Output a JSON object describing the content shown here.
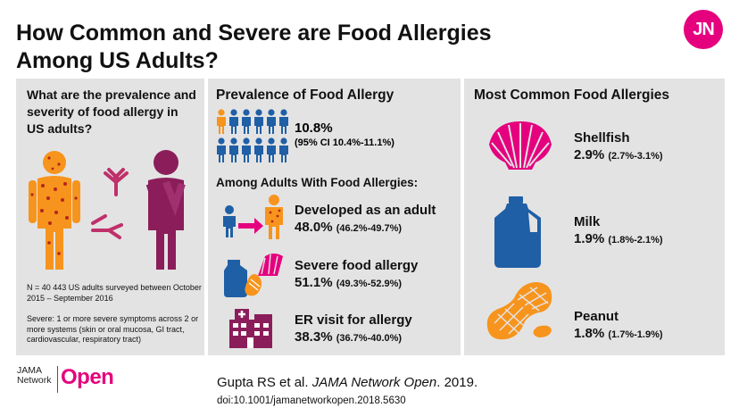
{
  "header": {
    "title_line1": "How Common and Severe are Food Allergies",
    "title_line2": "Among US Adults?",
    "logo_text": "JN"
  },
  "left": {
    "question": "What are the prevalence and severity of food allergy in US adults?",
    "note_sample": "N = 40 443 US adults surveyed between October 2015 – September 2016",
    "note_severe": "Severe: 1 or more severe symptoms across 2 or more systems (skin or oral mucosa, GI tract, cardiovascular, respiratory tract)"
  },
  "middle": {
    "prevalence_heading": "Prevalence of Food Allergy",
    "prevalence_value": "10.8%",
    "prevalence_ci": "(95% CI 10.4%-11.1%)",
    "subheading": "Among Adults With Food Allergies:",
    "stats": [
      {
        "label": "Developed as an adult",
        "value": "48.0%",
        "ci": "(46.2%-49.7%)"
      },
      {
        "label": "Severe food allergy",
        "value": "51.1%",
        "ci": "(49.3%-52.9%)"
      },
      {
        "label": "ER visit for allergy",
        "value": "38.3%",
        "ci": "(36.7%-40.0%)"
      }
    ]
  },
  "right": {
    "heading": "Most Common Food Allergies",
    "foods": [
      {
        "name": "Shellfish",
        "value": "2.9%",
        "ci": "(2.7%-3.1%)"
      },
      {
        "name": "Milk",
        "value": "1.9%",
        "ci": "(1.8%-2.1%)"
      },
      {
        "name": "Peanut",
        "value": "1.8%",
        "ci": "(1.7%-1.9%)"
      }
    ]
  },
  "footer": {
    "brand_small_line1": "JAMA",
    "brand_small_line2": "Network",
    "brand_big": "Open",
    "citation_author": "Gupta RS et al.",
    "citation_journal": "JAMA Network Open",
    "citation_year": ". 2019.",
    "doi": "doi:10.1001/jamanetworkopen.2018.5630"
  },
  "colors": {
    "magenta": "#e5007e",
    "orange": "#f7941d",
    "blue": "#1f5fa6",
    "purple": "#8b1e5a",
    "panel_gray": "#e3e3e3"
  }
}
